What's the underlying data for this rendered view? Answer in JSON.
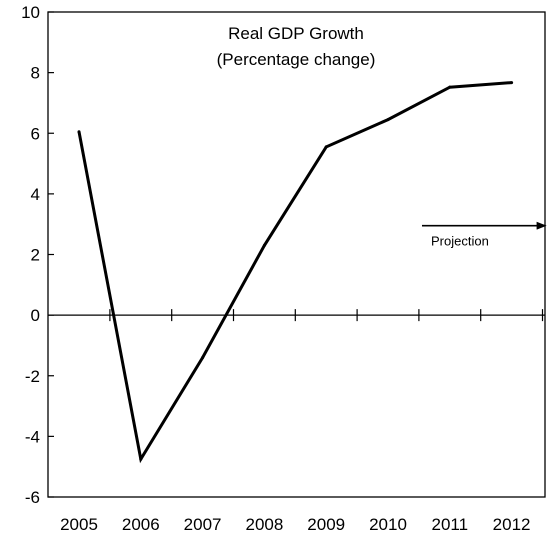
{
  "chart_data": {
    "type": "line",
    "title": "Real GDP Growth",
    "subtitle": "(Percentage change)",
    "xlabel": "",
    "ylabel": "",
    "x": [
      "2005",
      "2006",
      "2007",
      "2008",
      "2009",
      "2010",
      "2011",
      "2012"
    ],
    "series": [
      {
        "values": [
          6.05,
          -4.75,
          -1.4,
          2.3,
          5.55,
          6.45,
          7.52,
          7.67
        ]
      }
    ],
    "ylim": [
      -6,
      10
    ],
    "yticks": [
      "-6",
      "-4",
      "-2",
      "0",
      "2",
      "4",
      "6",
      "8",
      "10"
    ],
    "grid": false,
    "legend": "none",
    "annotation": {
      "text": "Projection",
      "arrow_from_year": 2010.55,
      "arrow_to_year": 2012.55,
      "y": 2.95
    },
    "colors": {
      "line": "#000000",
      "axis": "#000000",
      "background": "#ffffff"
    }
  }
}
